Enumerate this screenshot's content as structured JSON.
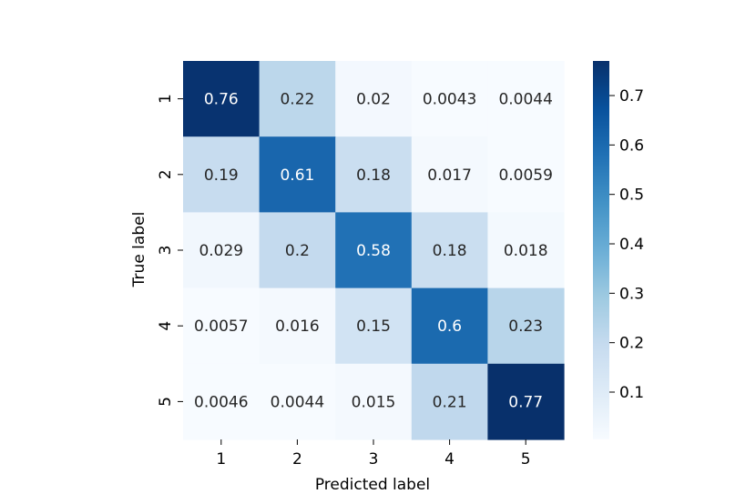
{
  "chart_data": {
    "type": "heatmap",
    "title": "",
    "xlabel": "Predicted label",
    "ylabel": "True label",
    "x_categories": [
      "1",
      "2",
      "3",
      "4",
      "5"
    ],
    "y_categories": [
      "1",
      "2",
      "3",
      "4",
      "5"
    ],
    "values": [
      [
        0.76,
        0.22,
        0.02,
        0.0043,
        0.0044
      ],
      [
        0.19,
        0.61,
        0.18,
        0.017,
        0.0059
      ],
      [
        0.029,
        0.2,
        0.58,
        0.18,
        0.018
      ],
      [
        0.0057,
        0.016,
        0.15,
        0.6,
        0.23
      ],
      [
        0.0046,
        0.0044,
        0.015,
        0.21,
        0.77
      ]
    ],
    "cell_labels": [
      [
        "0.76",
        "0.22",
        "0.02",
        "0.0043",
        "0.0044"
      ],
      [
        "0.19",
        "0.61",
        "0.18",
        "0.017",
        "0.0059"
      ],
      [
        "0.029",
        "0.2",
        "0.58",
        "0.18",
        "0.018"
      ],
      [
        "0.0057",
        "0.016",
        "0.15",
        "0.6",
        "0.23"
      ],
      [
        "0.0046",
        "0.0044",
        "0.015",
        "0.21",
        "0.77"
      ]
    ],
    "colormap": "Blues",
    "vmin": 0.0043,
    "vmax": 0.77,
    "colorbar": {
      "ticks": [
        0.1,
        0.2,
        0.3,
        0.4,
        0.5,
        0.6,
        0.7
      ],
      "tick_labels": [
        "0.1",
        "0.2",
        "0.3",
        "0.4",
        "0.5",
        "0.6",
        "0.7"
      ]
    }
  }
}
